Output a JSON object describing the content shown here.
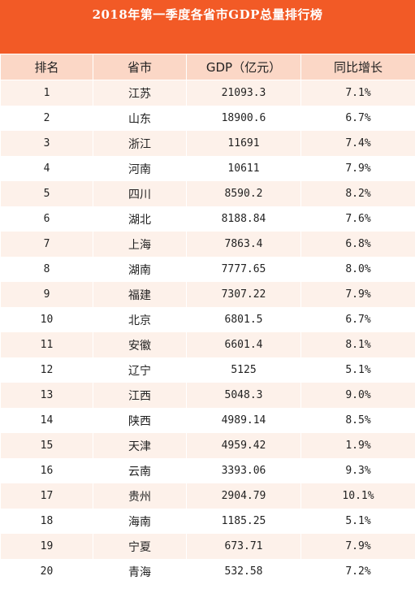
{
  "title": "2018年第一季度各省市GDP总量排行榜",
  "headers": [
    "排名",
    "省市",
    "GDP（亿元）",
    "同比增长"
  ],
  "rows": [
    {
      "rank": "1",
      "province": "江苏",
      "gdp": "21093.3",
      "growth": "7.1%"
    },
    {
      "rank": "2",
      "province": "山东",
      "gdp": "18900.6",
      "growth": "6.7%"
    },
    {
      "rank": "3",
      "province": "浙江",
      "gdp": "11691",
      "growth": "7.4%"
    },
    {
      "rank": "4",
      "province": "河南",
      "gdp": "10611",
      "growth": "7.9%"
    },
    {
      "rank": "5",
      "province": "四川",
      "gdp": "8590.2",
      "growth": "8.2%"
    },
    {
      "rank": "6",
      "province": "湖北",
      "gdp": "8188.84",
      "growth": "7.6%"
    },
    {
      "rank": "7",
      "province": "上海",
      "gdp": "7863.4",
      "growth": "6.8%"
    },
    {
      "rank": "8",
      "province": "湖南",
      "gdp": "7777.65",
      "growth": "8.0%"
    },
    {
      "rank": "9",
      "province": "福建",
      "gdp": "7307.22",
      "growth": "7.9%"
    },
    {
      "rank": "10",
      "province": "北京",
      "gdp": "6801.5",
      "growth": "6.7%"
    },
    {
      "rank": "11",
      "province": "安徽",
      "gdp": "6601.4",
      "growth": "8.1%"
    },
    {
      "rank": "12",
      "province": "辽宁",
      "gdp": "5125",
      "growth": "5.1%"
    },
    {
      "rank": "13",
      "province": "江西",
      "gdp": "5048.3",
      "growth": "9.0%"
    },
    {
      "rank": "14",
      "province": "陕西",
      "gdp": "4989.14",
      "growth": "8.5%"
    },
    {
      "rank": "15",
      "province": "天津",
      "gdp": "4959.42",
      "growth": "1.9%"
    },
    {
      "rank": "16",
      "province": "云南",
      "gdp": "3393.06",
      "growth": "9.3%"
    },
    {
      "rank": "17",
      "province": "贵州",
      "gdp": "2904.79",
      "growth": "10.1%"
    },
    {
      "rank": "18",
      "province": "海南",
      "gdp": "1185.25",
      "growth": "5.1%"
    },
    {
      "rank": "19",
      "province": "宁夏",
      "gdp": "673.71",
      "growth": "7.9%"
    },
    {
      "rank": "20",
      "province": "青海",
      "gdp": "532.58",
      "growth": "7.2%"
    }
  ],
  "colors": {
    "title_bg": "#f25a26",
    "header_bg": "#fbd7c6",
    "stripe_bg": "#fdf1ea"
  }
}
